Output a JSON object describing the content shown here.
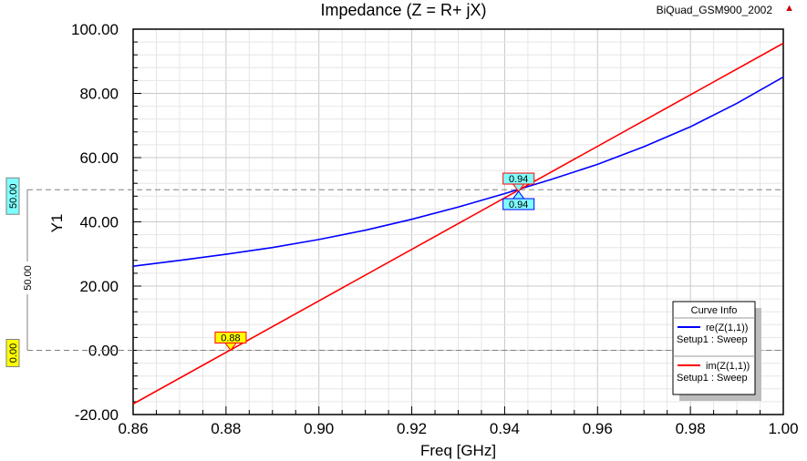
{
  "header": {
    "title": "Impedance (Z = R+ jX)",
    "project": "BiQuad_GSM900_2002"
  },
  "chart_data": {
    "type": "line",
    "title": "Impedance (Z = R+ jX)",
    "xlabel": "Freq [GHz]",
    "ylabel": "Y1",
    "xlim": [
      0.86,
      1.0
    ],
    "ylim": [
      -20,
      100
    ],
    "x_ticks": [
      "0.86",
      "0.88",
      "0.90",
      "0.92",
      "0.94",
      "0.96",
      "0.98",
      "1.00"
    ],
    "y_ticks": [
      "-20.00",
      "0.00",
      "20.00",
      "40.00",
      "60.00",
      "80.00",
      "100.00"
    ],
    "grid": true,
    "legend": {
      "title": "Curve Info",
      "placement": "bottom-right"
    },
    "series": [
      {
        "name": "re(Z(1,1))",
        "setup": "Setup1 : Sweep",
        "color": "#0000ff",
        "x": [
          0.86,
          0.87,
          0.88,
          0.89,
          0.9,
          0.91,
          0.92,
          0.93,
          0.94,
          0.95,
          0.96,
          0.97,
          0.98,
          0.99,
          1.0
        ],
        "y": [
          26.2,
          28.0,
          29.9,
          32.0,
          34.5,
          37.4,
          40.8,
          44.6,
          48.8,
          53.2,
          57.9,
          63.4,
          69.6,
          76.9,
          85.1
        ]
      },
      {
        "name": "im(Z(1,1))",
        "setup": "Setup1 : Sweep",
        "color": "#ff0000",
        "x": [
          0.86,
          1.0
        ],
        "y": [
          -16.7,
          95.6
        ]
      }
    ],
    "markers": [
      {
        "label": "0.88",
        "x": 0.881,
        "y": 0,
        "color": "#ffff00"
      },
      {
        "label": "0.94",
        "x": 0.943,
        "y": 49.5,
        "color": "#80ffff"
      },
      {
        "label": "0.94",
        "x": 0.943,
        "y": 49.5,
        "color": "#80ffff"
      }
    ],
    "ref_lines": [
      {
        "value": 50,
        "label": "50.00",
        "color": "#80ffff"
      },
      {
        "value": 0,
        "label": "0.00",
        "color": "#ffff00"
      }
    ],
    "delta_label": "50.00"
  }
}
